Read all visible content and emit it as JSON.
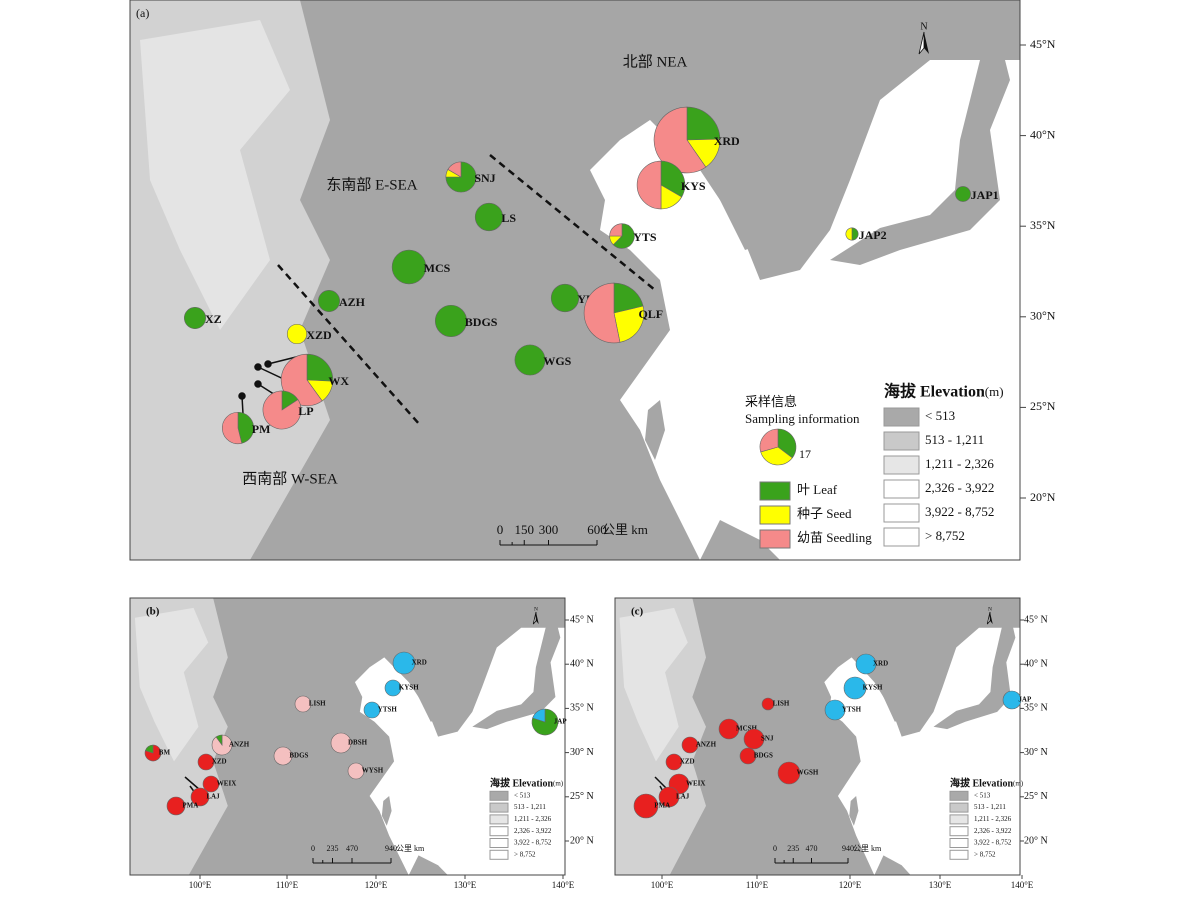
{
  "panel_a": {
    "label": "(a)",
    "lat_labels": [
      "45°N",
      "40°N",
      "35°N",
      "30°N",
      "25°N",
      "20°N"
    ],
    "north": "N",
    "regions": [
      "北部 NEA",
      "东南部 E-SEA",
      "西南部 W-SEA"
    ],
    "sites": [
      {
        "name": "XRD",
        "counts": [
          14,
          9,
          34
        ]
      },
      {
        "name": "KYS",
        "counts": [
          10,
          5,
          15
        ]
      },
      {
        "name": "SNJ",
        "counts": [
          9,
          1,
          2
        ]
      },
      {
        "name": "LS",
        "counts": [
          10,
          0,
          0
        ]
      },
      {
        "name": "YTS",
        "counts": [
          5,
          1,
          2
        ]
      },
      {
        "name": "MCS",
        "counts": [
          15,
          0,
          0
        ]
      },
      {
        "name": "AZH",
        "counts": [
          6,
          0,
          0
        ]
      },
      {
        "name": "XZ",
        "counts": [
          6,
          0,
          0
        ]
      },
      {
        "name": "XZD",
        "counts": [
          0,
          5,
          0
        ]
      },
      {
        "name": "BDGS",
        "counts": [
          13,
          0,
          0
        ]
      },
      {
        "name": "YLP",
        "counts": [
          10,
          0,
          0
        ]
      },
      {
        "name": "QLF",
        "counts": [
          10,
          12,
          25
        ]
      },
      {
        "name": "WGS",
        "counts": [
          12,
          0,
          0
        ]
      },
      {
        "name": "WX",
        "counts": [
          9,
          5,
          21
        ]
      },
      {
        "name": "LP",
        "counts": [
          3,
          0,
          16
        ]
      },
      {
        "name": "PM",
        "counts": [
          6,
          0,
          7
        ]
      },
      {
        "name": "JAP1",
        "counts": [
          3,
          0,
          0
        ]
      },
      {
        "name": "JAP2",
        "counts": [
          1,
          1,
          0
        ]
      }
    ],
    "sampling_legend": {
      "title_cn": "采样信息",
      "title_en": "Sampling information",
      "example_counts": [
        6,
        6,
        5
      ],
      "example_label": 17,
      "categories": [
        {
          "label": "叶 Leaf",
          "color": "#3aa21c"
        },
        {
          "label": "种子 Seed",
          "color": "#ffff00"
        },
        {
          "label": "幼苗 Seedling",
          "color": "#f58a8a"
        }
      ]
    },
    "elevation_legend": {
      "title": "海拔 Elevation",
      "unit": "(m)",
      "classes": [
        "< 513",
        "513 - 1,211",
        "1,211 - 2,326",
        "2,326 - 3,922",
        "3,922 - 8,752",
        "> 8,752"
      ]
    },
    "scale_bar": {
      "labels": [
        0,
        150,
        300,
        600
      ],
      "unit": "公里 km"
    }
  },
  "panel_b": {
    "label": "(b)",
    "lat_labels": [
      "45° N",
      "40° N",
      "35° N",
      "30° N",
      "25° N",
      "20° N"
    ],
    "lon_labels": [
      "100°E",
      "110°E",
      "120°E",
      "130°E",
      "140°E"
    ],
    "north": "N",
    "sites": [
      {
        "name": "BM",
        "colors": [
          "#e8201f",
          "#3aa21c"
        ],
        "shares": [
          80,
          20
        ]
      },
      {
        "name": "ANZH",
        "colors": [
          "#f4c0c0",
          "#3aa21c"
        ],
        "shares": [
          90,
          10
        ]
      },
      {
        "name": "XZD",
        "colors": [
          "#e8201f"
        ],
        "shares": [
          100
        ]
      },
      {
        "name": "WEIX",
        "colors": [
          "#e8201f"
        ],
        "shares": [
          100
        ]
      },
      {
        "name": "LAJ",
        "colors": [
          "#e8201f"
        ],
        "shares": [
          100
        ]
      },
      {
        "name": "PMA",
        "colors": [
          "#e8201f"
        ],
        "shares": [
          100
        ]
      },
      {
        "name": "LISH",
        "colors": [
          "#f4c0c0"
        ],
        "shares": [
          100
        ]
      },
      {
        "name": "BDGS",
        "colors": [
          "#f4c0c0"
        ],
        "shares": [
          100
        ]
      },
      {
        "name": "DBSH",
        "colors": [
          "#f4c0c0"
        ],
        "shares": [
          100
        ]
      },
      {
        "name": "WYSH",
        "colors": [
          "#f4c0c0"
        ],
        "shares": [
          100
        ]
      },
      {
        "name": "XRD",
        "colors": [
          "#2ab8ea"
        ],
        "shares": [
          100
        ]
      },
      {
        "name": "KYSH",
        "colors": [
          "#2ab8ea"
        ],
        "shares": [
          100
        ]
      },
      {
        "name": "YTSH",
        "colors": [
          "#2ab8ea"
        ],
        "shares": [
          100
        ]
      },
      {
        "name": "JAP",
        "colors": [
          "#3aa21c",
          "#2ab8ea"
        ],
        "shares": [
          80,
          20
        ]
      }
    ],
    "elevation_legend": {
      "title": "海拔 Elevation",
      "unit": "(m)",
      "classes": [
        "< 513",
        "513 - 1,211",
        "1,211 - 2,326",
        "2,326 - 3,922",
        "3,922 - 8,752",
        "> 8,752"
      ]
    },
    "scale_bar": {
      "labels": [
        0,
        235,
        470,
        940
      ],
      "unit": "公里 km"
    }
  },
  "panel_c": {
    "label": "(c)",
    "lat_labels": [
      "45° N",
      "40° N",
      "35° N",
      "30° N",
      "25° N",
      "20° N"
    ],
    "lon_labels": [
      "100°E",
      "110°E",
      "120°E",
      "130°E",
      "140°E"
    ],
    "north": "N",
    "sites": [
      {
        "name": "LISH",
        "colors": [
          "#e8201f"
        ],
        "shares": [
          100
        ]
      },
      {
        "name": "MCSH",
        "colors": [
          "#e8201f"
        ],
        "shares": [
          100
        ]
      },
      {
        "name": "SNJ",
        "colors": [
          "#e8201f"
        ],
        "shares": [
          100
        ]
      },
      {
        "name": "BDGS",
        "colors": [
          "#e8201f"
        ],
        "shares": [
          100
        ]
      },
      {
        "name": "ANZH",
        "colors": [
          "#e8201f"
        ],
        "shares": [
          100
        ]
      },
      {
        "name": "XZD",
        "colors": [
          "#e8201f"
        ],
        "shares": [
          100
        ]
      },
      {
        "name": "WEIX",
        "colors": [
          "#e8201f"
        ],
        "shares": [
          100
        ]
      },
      {
        "name": "LAJ",
        "colors": [
          "#e8201f"
        ],
        "shares": [
          100
        ]
      },
      {
        "name": "PMA",
        "colors": [
          "#e8201f"
        ],
        "shares": [
          100
        ]
      },
      {
        "name": "WGSH",
        "colors": [
          "#e8201f"
        ],
        "shares": [
          100
        ]
      },
      {
        "name": "XRD",
        "colors": [
          "#2ab8ea"
        ],
        "shares": [
          100
        ]
      },
      {
        "name": "KYSH",
        "colors": [
          "#2ab8ea"
        ],
        "shares": [
          100
        ]
      },
      {
        "name": "YTSH",
        "colors": [
          "#2ab8ea"
        ],
        "shares": [
          100
        ]
      },
      {
        "name": "JAP",
        "colors": [
          "#2ab8ea"
        ],
        "shares": [
          100
        ]
      }
    ],
    "elevation_legend": {
      "title": "海拔 Elevation",
      "unit": "(m)",
      "classes": [
        "< 513",
        "513 - 1,211",
        "1,211 - 2,326",
        "2,326 - 3,922",
        "3,922 - 8,752",
        "> 8,752"
      ]
    },
    "scale_bar": {
      "labels": [
        0,
        235,
        470,
        940
      ],
      "unit": "公里 km"
    }
  }
}
